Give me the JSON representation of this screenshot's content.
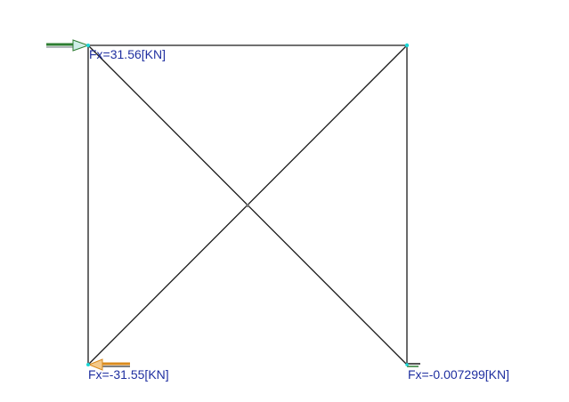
{
  "colors": {
    "background": "#ffffff",
    "member": "#1a1a1a",
    "label_text": "#1f2fa0",
    "arrow_green": "#2e7d32",
    "arrow_orange": "#d98a1c",
    "node_cyan": "#19d6d6"
  },
  "structure": {
    "members": [
      {
        "name": "top-beam",
        "from": "top-left",
        "to": "top-right"
      },
      {
        "name": "left-column",
        "from": "top-left",
        "to": "bottom-left"
      },
      {
        "name": "right-column",
        "from": "top-right",
        "to": "bottom-right"
      },
      {
        "name": "diagonal-a",
        "from": "top-left",
        "to": "bottom-right"
      },
      {
        "name": "diagonal-b",
        "from": "top-right",
        "to": "bottom-left"
      }
    ]
  },
  "reactions": [
    {
      "node": "top-left",
      "label": "Fx=31.56[KN]",
      "arrow": "green-right"
    },
    {
      "node": "bottom-left",
      "label": "Fx=-31.55[KN]",
      "arrow": "orange-left"
    },
    {
      "node": "bottom-right",
      "label": "Fx=-0.007299[KN]",
      "arrow": "small"
    }
  ]
}
